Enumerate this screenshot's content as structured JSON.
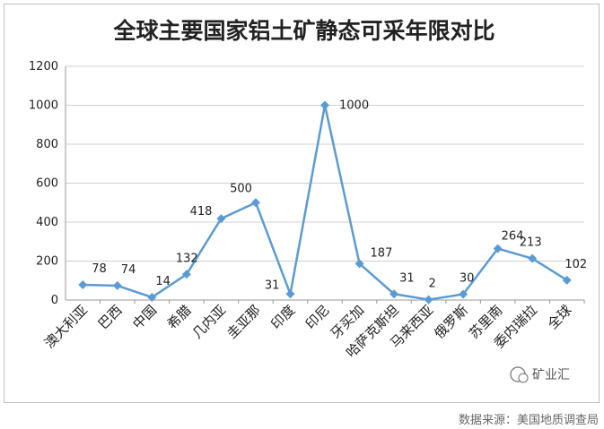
{
  "chart_data": {
    "type": "line",
    "title": "全球主要国家铝土矿静态可采年限对比",
    "categories": [
      "澳大利亚",
      "巴西",
      "中国",
      "希腊",
      "几内亚",
      "圭亚那",
      "印度",
      "印尼",
      "牙买加",
      "哈萨克斯坦",
      "马来西亚",
      "俄罗斯",
      "苏里南",
      "委内瑞拉",
      "全球"
    ],
    "series": [
      {
        "values": [
          78,
          74,
          14,
          132,
          418,
          500,
          31,
          1000,
          187,
          31,
          2,
          30,
          264,
          213,
          102
        ]
      }
    ],
    "ylim": [
      0,
      1200
    ],
    "yticks": [
      0,
      200,
      400,
      600,
      800,
      1000,
      1200
    ],
    "grid": true,
    "line_color": "#5b9bd5"
  },
  "watermark": {
    "text": "矿业汇"
  },
  "source_note": "数据来源：美国地质调查局"
}
